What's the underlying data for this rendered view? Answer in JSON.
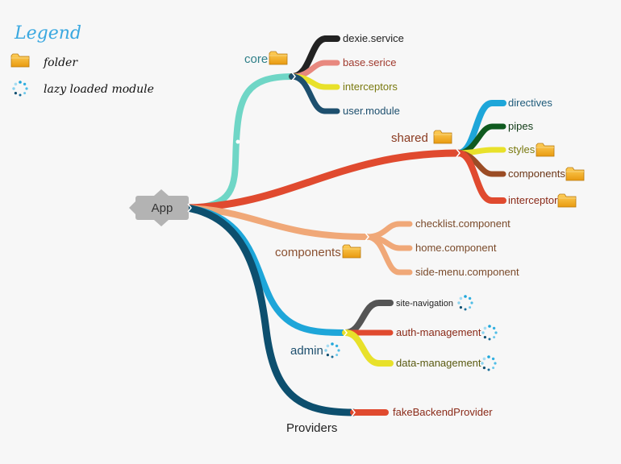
{
  "legend": {
    "title": "Legend",
    "items": [
      {
        "label": "folder",
        "icon": "folder-icon"
      },
      {
        "label": "lazy loaded module",
        "icon": "lazy-module-icon"
      }
    ]
  },
  "root": {
    "label": "App"
  },
  "branches": {
    "core": {
      "label": "core",
      "color": "#6fd6c6",
      "children": [
        {
          "label": "dexie.service",
          "color": "#222222",
          "text_color": "#222222"
        },
        {
          "label": "base.serice",
          "color": "#e8887f",
          "text_color": "#a03a2e"
        },
        {
          "label": "interceptors",
          "color": "#e8e12a",
          "text_color": "#7a7a10"
        },
        {
          "label": "user.module",
          "color": "#1d4f6e",
          "text_color": "#1d4f6e"
        }
      ]
    },
    "shared": {
      "label": "shared",
      "color": "#e04a2f",
      "children": [
        {
          "label": "directives",
          "color": "#1ea6d9",
          "text_color": "#1d5a7a"
        },
        {
          "label": "pipes",
          "color": "#0f5a1f",
          "text_color": "#0f3a15"
        },
        {
          "label": "styles",
          "color": "#e8e12a",
          "text_color": "#7a7a10"
        },
        {
          "label": "components",
          "color": "#9b4c25",
          "text_color": "#6b3515"
        },
        {
          "label": "interceptor",
          "color": "#e04a2f",
          "text_color": "#8a2a18"
        }
      ]
    },
    "components": {
      "label": "components",
      "color": "#f0a878",
      "children": [
        {
          "label": "checklist.component",
          "color": "#f0a878",
          "text_color": "#7a4a2a"
        },
        {
          "label": "home.component",
          "color": "#f0a878",
          "text_color": "#7a4a2a"
        },
        {
          "label": "side-menu.component",
          "color": "#f0a878",
          "text_color": "#7a4a2a"
        }
      ]
    },
    "admin": {
      "label": "admin",
      "color": "#1ea6d9",
      "children": [
        {
          "label": "site-navigation",
          "color": "#555555",
          "text_color": "#222222"
        },
        {
          "label": "auth-management",
          "color": "#e04a2f",
          "text_color": "#8a2a18"
        },
        {
          "label": "data-management",
          "color": "#e8e12a",
          "text_color": "#5a5a10"
        }
      ]
    },
    "providers": {
      "label": "Providers",
      "color": "#0d4f6e",
      "children": [
        {
          "label": "fakeBackendProvider",
          "color": "#e04a2f",
          "text_color": "#8a2a18"
        }
      ]
    }
  }
}
